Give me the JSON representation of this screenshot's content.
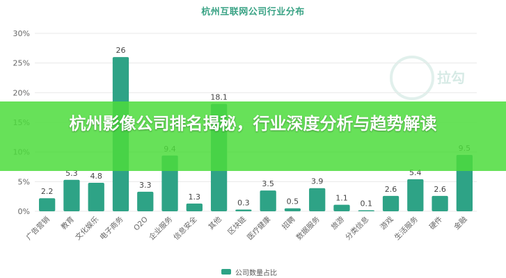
{
  "banner": {
    "title": "杭州影像公司排名揭秘，行业深度分析与趋势解读"
  },
  "watermark": {
    "text": "拉勾",
    "icon": "lagou-logo-icon"
  },
  "colors": {
    "bar": "#2ea386",
    "axis_text": "#666666",
    "grid": "#e8e8e8",
    "title": "#3aa385"
  },
  "chart_data": {
    "type": "bar",
    "title": "杭州互联网公司行业分布",
    "xlabel": "",
    "ylabel": "",
    "ylim": [
      0,
      30
    ],
    "yticks": [
      "0%",
      "5%",
      "10%",
      "15%",
      "20%",
      "25%",
      "30%"
    ],
    "grid": "horizontal",
    "legend": "bottom-center",
    "categories": [
      "广告营销",
      "教育",
      "文化娱乐",
      "电子商务",
      "O2O",
      "企业服务",
      "信息安全",
      "其他",
      "区块链",
      "医疗健康",
      "招聘",
      "数据服务",
      "旅游",
      "分类信息",
      "游戏",
      "生活服务",
      "硬件",
      "金融"
    ],
    "series": [
      {
        "name": "公司数量占比",
        "values": [
          2.2,
          5.3,
          4.8,
          26,
          3.3,
          9.4,
          1.3,
          18.1,
          0.3,
          3.5,
          0.5,
          3.9,
          1.1,
          0.1,
          2.6,
          5.4,
          2.6,
          9.5
        ]
      }
    ]
  }
}
